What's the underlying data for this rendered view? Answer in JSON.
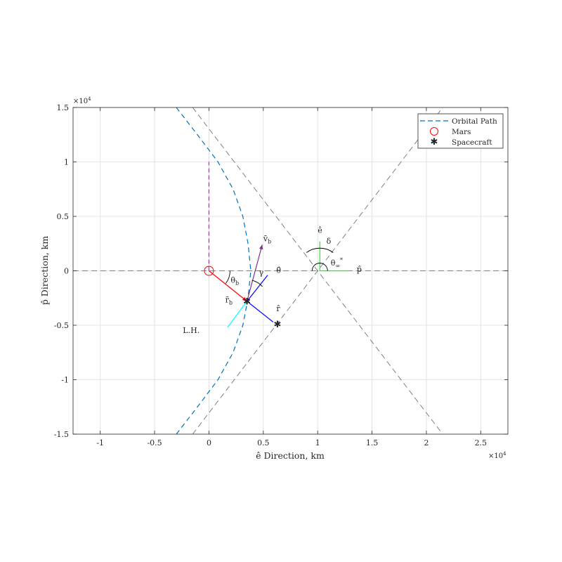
{
  "chart_data": {
    "type": "line",
    "xlabel": "ê Direction, km",
    "ylabel": "p̂ Direction, km",
    "xlim": [
      -12500,
      27500
    ],
    "ylim": [
      -15000,
      15000
    ],
    "xticks": [
      -10000,
      -5000,
      0,
      5000,
      10000,
      15000,
      20000,
      25000
    ],
    "xtick_labels": [
      "-1",
      "-0.5",
      "0",
      "0.5",
      "1",
      "1.5",
      "2",
      "2.5"
    ],
    "yticks": [
      -15000,
      -10000,
      -5000,
      0,
      5000,
      10000,
      15000
    ],
    "ytick_labels": [
      "-1.5",
      "-1",
      "-0.5",
      "0",
      "0.5",
      "1",
      "1.5"
    ],
    "x_exponent": "×10",
    "y_exponent": "×10",
    "exponent_power": "4",
    "grid": true,
    "legend_position": "top-right",
    "legend": [
      {
        "label": "Orbital Path",
        "style": "dashed-line",
        "color": "#0072bd"
      },
      {
        "label": "Mars",
        "style": "circle",
        "color": "#ff0000"
      },
      {
        "label": "Spacecraft",
        "style": "asterisk",
        "color": "#000000"
      }
    ],
    "series": [
      {
        "name": "Orbital Path",
        "color": "#0072bd",
        "x": [
          -3000,
          -1060,
          830,
          2220,
          3120,
          3600,
          3850,
          3600,
          3120,
          2220,
          830,
          -1060,
          -3000
        ],
        "y": [
          15000,
          12500,
          10000,
          7500,
          5000,
          2500,
          0,
          -2500,
          -5000,
          -7500,
          -10000,
          -12500,
          -15000
        ]
      }
    ],
    "asymptotes": {
      "color": "#808080",
      "lines": [
        {
          "x": [
            -1500,
            21500
          ],
          "y": [
            15000,
            -15000
          ]
        },
        {
          "x": [
            -1500,
            21500
          ],
          "y": [
            -15000,
            15000
          ]
        }
      ]
    },
    "apse_line": {
      "y": 0,
      "color": "#808080"
    },
    "mars": {
      "x": 0,
      "y": 0,
      "color": "#ff0000"
    },
    "spacecraft_points": [
      {
        "x": 3500,
        "y": -2800
      },
      {
        "x": 6300,
        "y": -4900
      }
    ],
    "latus_rectum": {
      "x": [
        0,
        0
      ],
      "y": [
        0,
        10000
      ],
      "color": "#ff00ff"
    },
    "vectors": [
      {
        "name": "r_b",
        "color": "#ff0000",
        "from": [
          0,
          0
        ],
        "to": [
          3500,
          -2800
        ]
      },
      {
        "name": "v_b",
        "color": "#7e2f8e",
        "from": [
          3500,
          -2800
        ],
        "to": [
          4900,
          2400
        ]
      },
      {
        "name": "theta_hat",
        "color": "#0000ff",
        "from": [
          3500,
          -2800
        ],
        "to": [
          5400,
          -400
        ]
      },
      {
        "name": "r_hat",
        "color": "#0000ff",
        "from": [
          3500,
          -2800
        ],
        "to": [
          5900,
          -4700
        ]
      },
      {
        "name": "tangent",
        "color": "#00ffff",
        "from": [
          3500,
          -2800
        ],
        "to": [
          1700,
          -5200
        ]
      },
      {
        "name": "e_hat",
        "color": "#00ff00",
        "from": [
          10200,
          0
        ],
        "to": [
          10200,
          2700
        ]
      },
      {
        "name": "p_hat",
        "color": "#00ff00",
        "from": [
          10200,
          0
        ],
        "to": [
          12900,
          0
        ]
      }
    ],
    "annotations": [
      {
        "id": "theta_b",
        "text": "θ",
        "sub": "b",
        "sup": "",
        "x": 2000,
        "y": -1100
      },
      {
        "id": "r_b_label",
        "text": "r̄",
        "sub": "b",
        "sup": "",
        "x": 1500,
        "y": -2900
      },
      {
        "id": "v_b_label",
        "text": "v̄",
        "sub": "b",
        "sup": "",
        "x": 5000,
        "y": 2700
      },
      {
        "id": "gamma",
        "text": "γ",
        "sub": "",
        "sup": "",
        "x": 4600,
        "y": -400
      },
      {
        "id": "theta_hat_label",
        "text": "θ̂",
        "sub": "",
        "sup": "",
        "x": 6200,
        "y": -200
      },
      {
        "id": "r_hat_label",
        "text": "r̂",
        "sub": "",
        "sup": "",
        "x": 6200,
        "y": -3700
      },
      {
        "id": "lh",
        "text": "L.H.",
        "sub": "",
        "sup": "",
        "x": -2400,
        "y": -5700
      },
      {
        "id": "e_hat_label",
        "text": "ê",
        "sub": "",
        "sup": "",
        "x": 10000,
        "y": 3500
      },
      {
        "id": "delta",
        "text": "δ",
        "sub": "",
        "sup": "",
        "x": 10800,
        "y": 2500
      },
      {
        "id": "theta_inf",
        "text": "θ",
        "sub": "∞",
        "sup": "*",
        "x": 11200,
        "y": 500
      },
      {
        "id": "p_hat_label",
        "text": "p̂",
        "sub": "",
        "sup": "",
        "x": 13600,
        "y": -100
      }
    ]
  }
}
